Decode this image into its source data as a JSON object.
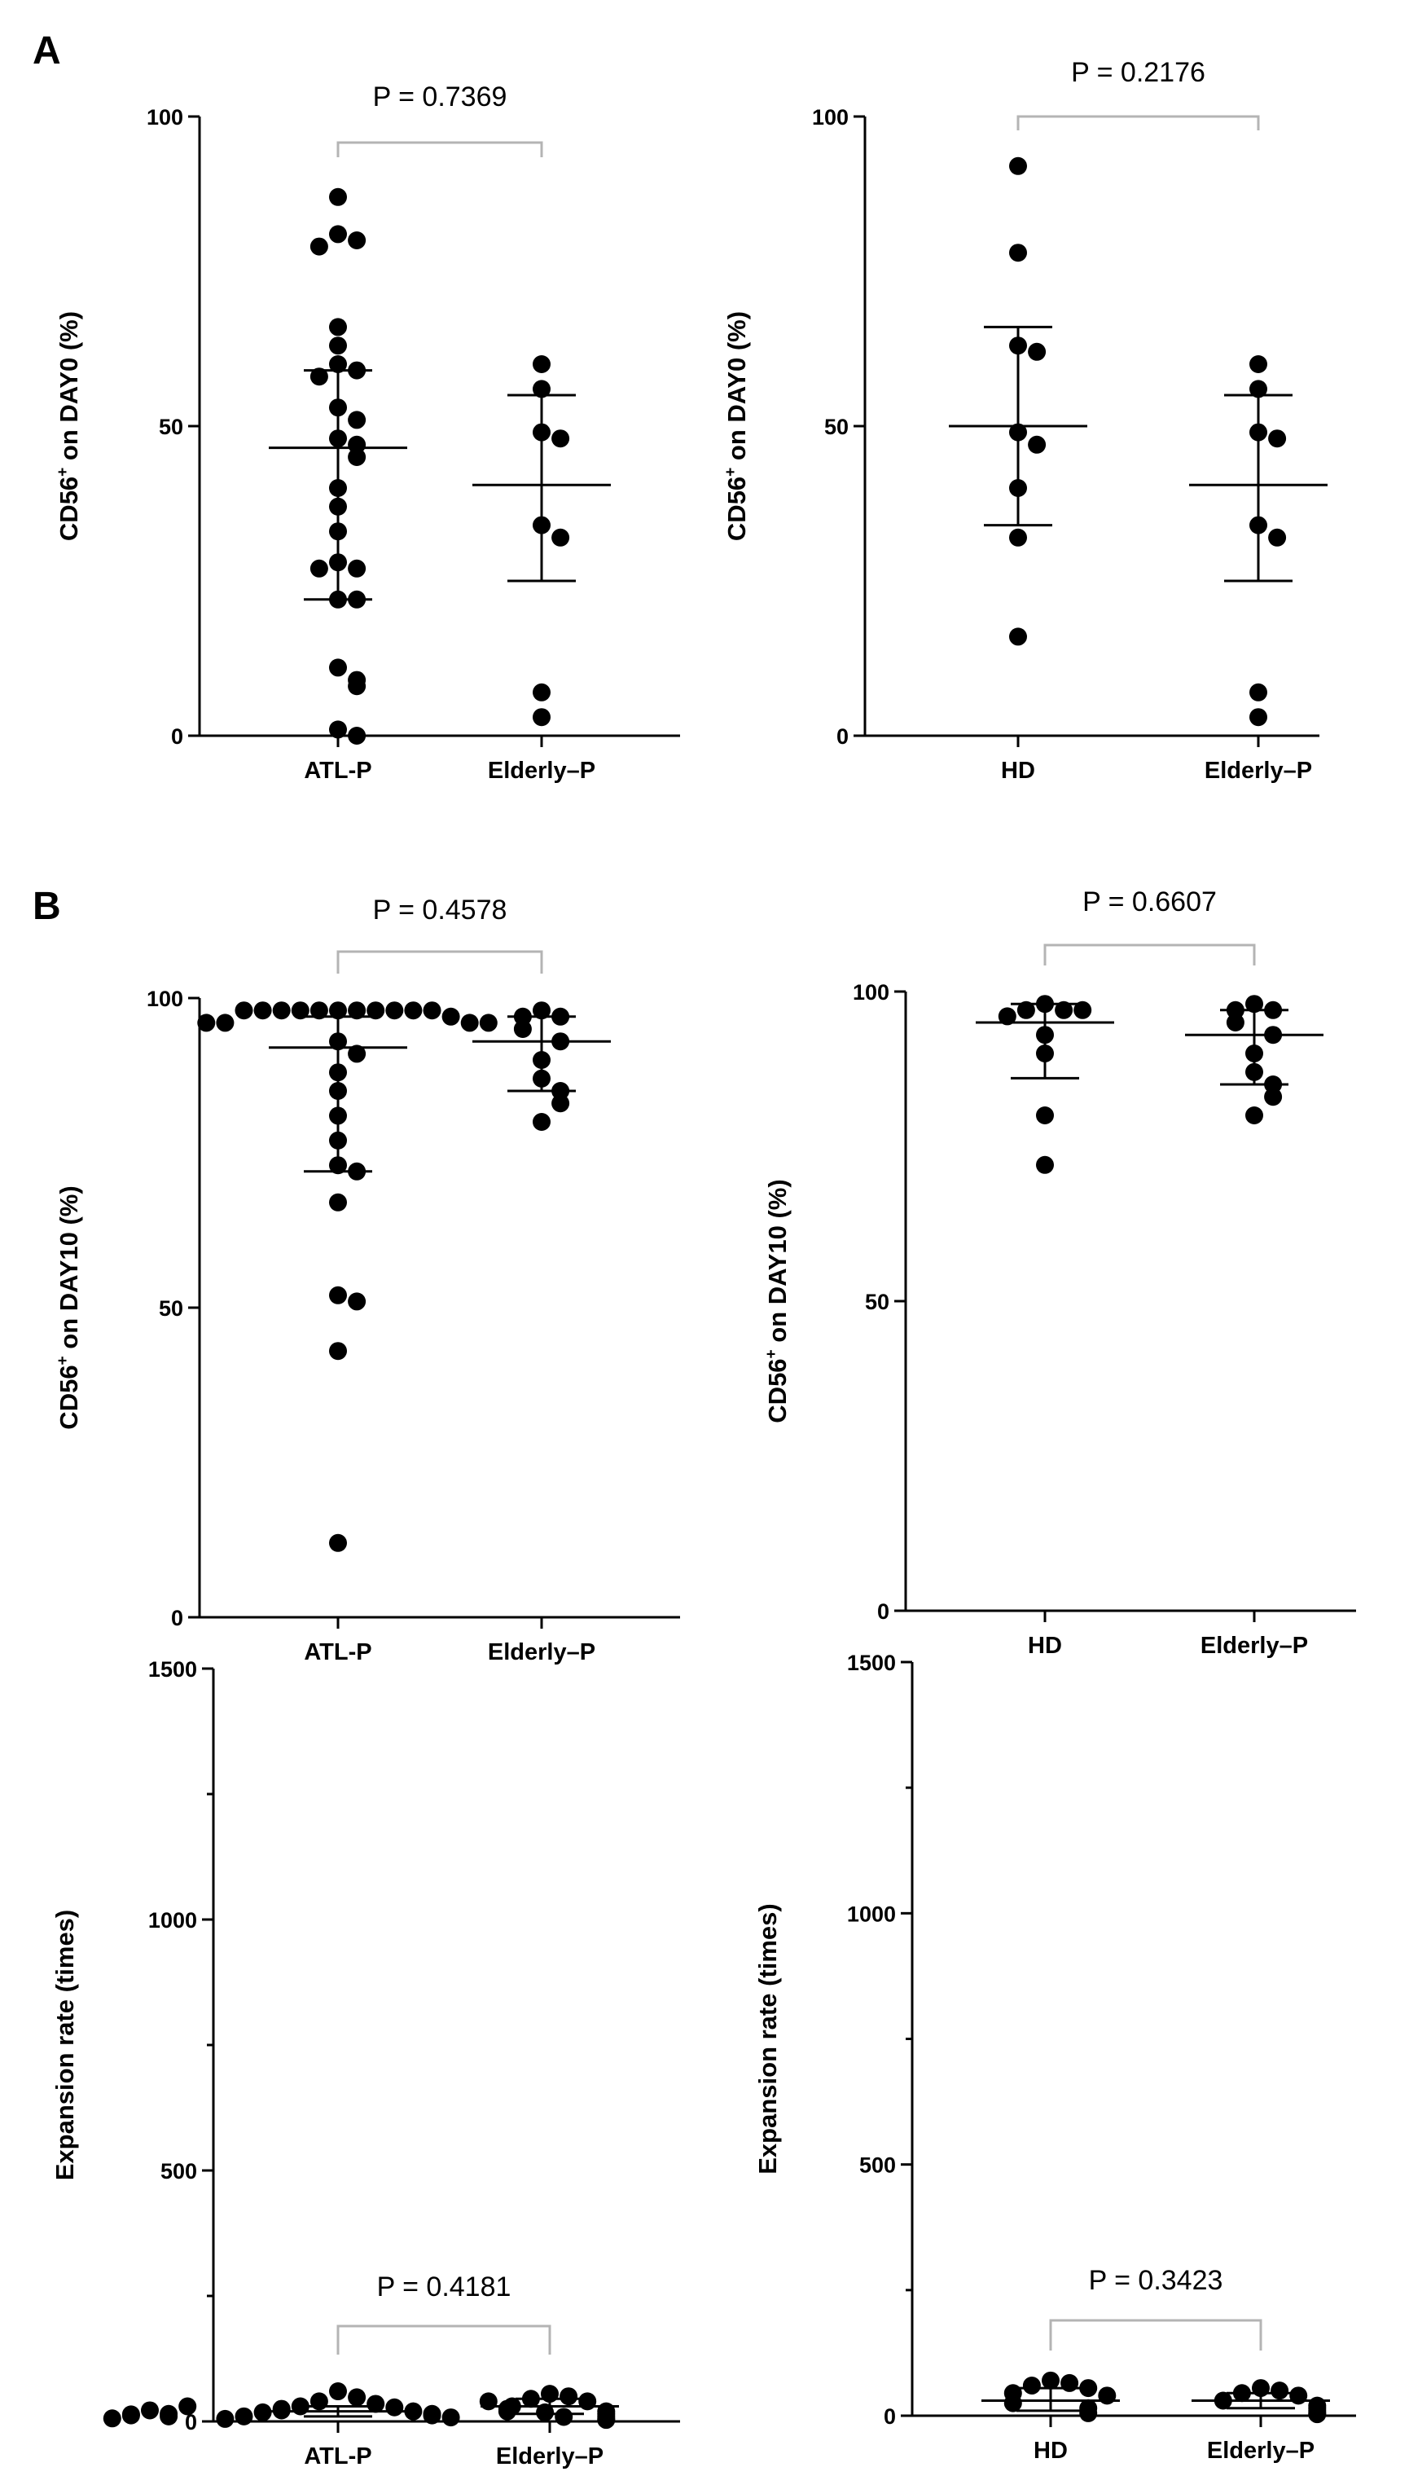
{
  "figure": {
    "panel_letters": [
      "A",
      "B"
    ]
  },
  "chart_data": [
    {
      "id": "A-left",
      "type": "scatter",
      "ylabel": {
        "main": "CD56",
        "sup": "+",
        "rest": " on DAY0 (%)"
      },
      "ylim": [
        0,
        100
      ],
      "yticks": [
        0,
        50,
        100
      ],
      "minor_yticks": [],
      "categories": [
        "ATL-P",
        "Elderly–P"
      ],
      "series": [
        {
          "name": "ATL-P",
          "mean": 46.5,
          "upper": 59,
          "lower": 22,
          "values": [
            87,
            81,
            80,
            79,
            66,
            63,
            60,
            59,
            58,
            53,
            51,
            48,
            47,
            45,
            40,
            37,
            33,
            28,
            27,
            27,
            22,
            22,
            11,
            9,
            8,
            1,
            0
          ]
        },
        {
          "name": "Elderly–P",
          "mean": 40.5,
          "upper": 55,
          "lower": 25,
          "values": [
            60,
            56,
            49,
            48,
            34,
            32,
            7,
            3
          ]
        }
      ],
      "pvalue": "P = 0.7369"
    },
    {
      "id": "A-right",
      "type": "scatter",
      "ylabel": {
        "main": "CD56",
        "sup": "+",
        "rest": " on DAY0 (%)"
      },
      "ylim": [
        0,
        100
      ],
      "yticks": [
        0,
        50,
        100
      ],
      "minor_yticks": [],
      "categories": [
        "HD",
        "Elderly–P"
      ],
      "series": [
        {
          "name": "HD",
          "mean": 50,
          "upper": 66,
          "lower": 34,
          "values": [
            92,
            78,
            63,
            62,
            49,
            47,
            40,
            32,
            16
          ]
        },
        {
          "name": "Elderly–P",
          "mean": 40.5,
          "upper": 55,
          "lower": 25,
          "values": [
            60,
            56,
            49,
            48,
            34,
            32,
            7,
            3
          ]
        }
      ],
      "pvalue": "P = 0.2176"
    },
    {
      "id": "B-left",
      "type": "scatter",
      "ylabel": {
        "main": "CD56",
        "sup": "+",
        "rest": " on DAY10 (%)"
      },
      "ylim": [
        0,
        100
      ],
      "yticks": [
        0,
        50,
        100
      ],
      "minor_yticks": [],
      "categories": [
        "ATL-P",
        "Elderly–P"
      ],
      "series": [
        {
          "name": "ATL-P",
          "mean": 92,
          "upper": 97,
          "lower": 72,
          "values": [
            98,
            98,
            98,
            98,
            98,
            98,
            98,
            98,
            98,
            98,
            98,
            97,
            96,
            96,
            96,
            96,
            93,
            91,
            88,
            85,
            81,
            77,
            73,
            72,
            67,
            52,
            51,
            43,
            12
          ]
        },
        {
          "name": "Elderly–P",
          "mean": 93,
          "upper": 97,
          "lower": 85,
          "values": [
            98,
            97,
            97,
            95,
            93,
            90,
            87,
            85,
            83,
            80
          ]
        }
      ],
      "pvalue": "P = 0.4578"
    },
    {
      "id": "B-right",
      "type": "scatter",
      "ylabel": {
        "main": "CD56",
        "sup": "+",
        "rest": " on DAY10 (%)"
      },
      "ylim": [
        0,
        100
      ],
      "yticks": [
        0,
        50,
        100
      ],
      "minor_yticks": [],
      "categories": [
        "HD",
        "Elderly–P"
      ],
      "series": [
        {
          "name": "HD",
          "mean": 95,
          "upper": 98,
          "lower": 86,
          "values": [
            98,
            97,
            97,
            97,
            96,
            93,
            90,
            80,
            72
          ]
        },
        {
          "name": "Elderly–P",
          "mean": 93,
          "upper": 97,
          "lower": 85,
          "values": [
            98,
            97,
            97,
            95,
            93,
            90,
            87,
            85,
            83,
            80
          ]
        }
      ],
      "pvalue": "P = 0.6607"
    },
    {
      "id": "C-left",
      "type": "scatter",
      "ylabel": {
        "main": "Expansion rate (times)",
        "sup": "",
        "rest": ""
      },
      "ylim": [
        0,
        1500
      ],
      "yticks": [
        0,
        500,
        1000,
        1500
      ],
      "minor_yticks": [
        250,
        750,
        1250
      ],
      "categories": [
        "ATL-P",
        "Elderly–P"
      ],
      "series": [
        {
          "name": "ATL-P",
          "mean": 20,
          "upper": 30,
          "lower": 10,
          "values": [
            60,
            48,
            40,
            35,
            30,
            28,
            25,
            22,
            20,
            18,
            15,
            12,
            10,
            8,
            5,
            40,
            30,
            25,
            20,
            15,
            10,
            22,
            18,
            14,
            12,
            9,
            6
          ]
        },
        {
          "name": "Elderly–P",
          "mean": 30,
          "upper": 45,
          "lower": 15,
          "values": [
            55,
            50,
            45,
            40,
            30,
            20,
            15,
            10,
            5,
            3
          ]
        }
      ],
      "pvalue": "P = 0.4181"
    },
    {
      "id": "C-right",
      "type": "scatter",
      "ylabel": {
        "main": "Expansion rate (times)",
        "sup": "",
        "rest": ""
      },
      "ylim": [
        0,
        1500
      ],
      "yticks": [
        0,
        500,
        1000,
        1500
      ],
      "minor_yticks": [
        250,
        750,
        1250
      ],
      "categories": [
        "HD",
        "Elderly–P"
      ],
      "series": [
        {
          "name": "HD",
          "mean": 30,
          "upper": 55,
          "lower": 10,
          "values": [
            70,
            65,
            60,
            55,
            45,
            40,
            25,
            15,
            5
          ]
        },
        {
          "name": "Elderly–P",
          "mean": 30,
          "upper": 45,
          "lower": 15,
          "values": [
            55,
            50,
            45,
            40,
            30,
            20,
            15,
            10,
            5,
            3
          ]
        }
      ],
      "pvalue": "P = 0.3423"
    }
  ]
}
